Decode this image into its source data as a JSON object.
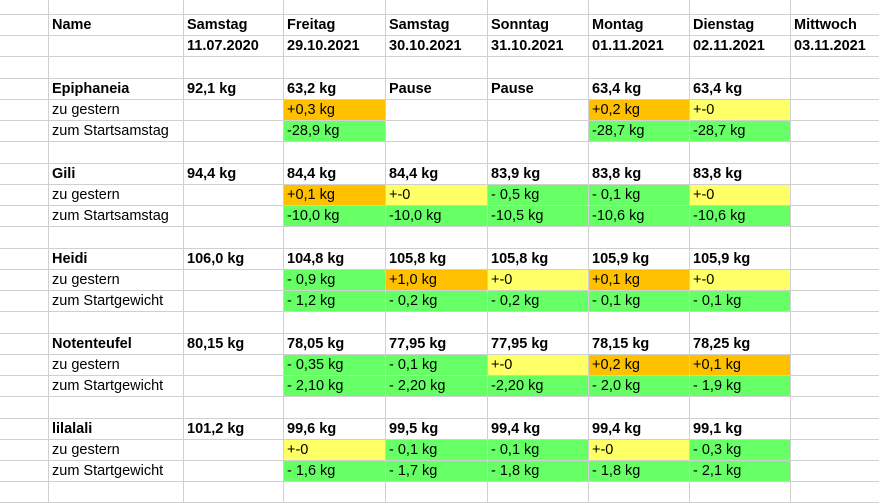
{
  "sheet": {
    "colors": {
      "orange": "#ffc000",
      "yellow": "#ffff66",
      "green": "#66ff66",
      "grid": "#d0d0d0"
    },
    "header": {
      "name": "Name",
      "days": [
        "Samstag",
        "Freitag",
        "Samstag",
        "Sonntag",
        "Montag",
        "Dienstag",
        "Mittwoch"
      ],
      "dates": [
        "11.07.2020",
        "29.10.2021",
        "30.10.2021",
        "31.10.2021",
        "01.11.2021",
        "02.11.2021",
        "03.11.2021"
      ]
    },
    "people": [
      {
        "name": "Epiphaneia",
        "start": "92,1 kg",
        "weights": [
          "63,2 kg",
          "Pause",
          "Pause",
          "63,4 kg",
          "63,4 kg",
          ""
        ],
        "diff_label": "zu gestern",
        "diff": [
          {
            "v": "+0,3 kg",
            "c": "orange"
          },
          {
            "v": "",
            "c": ""
          },
          {
            "v": "",
            "c": ""
          },
          {
            "v": "+0,2 kg",
            "c": "orange"
          },
          {
            "v": "+-0",
            "c": "yellow"
          },
          {
            "v": "",
            "c": ""
          }
        ],
        "total_label": "zum Startsamstag",
        "total": [
          {
            "v": "-28,9 kg",
            "c": "green"
          },
          {
            "v": "",
            "c": ""
          },
          {
            "v": "",
            "c": ""
          },
          {
            "v": "-28,7 kg",
            "c": "green"
          },
          {
            "v": "-28,7 kg",
            "c": "green"
          },
          {
            "v": "",
            "c": ""
          }
        ]
      },
      {
        "name": "Gili",
        "start": "94,4 kg",
        "weights": [
          "84,4 kg",
          "84,4 kg",
          "83,9 kg",
          "83,8 kg",
          "83,8 kg",
          ""
        ],
        "diff_label": "zu gestern",
        "diff": [
          {
            "v": "+0,1 kg",
            "c": "orange"
          },
          {
            "v": "+-0",
            "c": "yellow"
          },
          {
            "v": "- 0,5 kg",
            "c": "green"
          },
          {
            "v": "- 0,1 kg",
            "c": "green"
          },
          {
            "v": "+-0",
            "c": "yellow"
          },
          {
            "v": "",
            "c": ""
          }
        ],
        "total_label": "zum Startsamstag",
        "total": [
          {
            "v": "-10,0 kg",
            "c": "green"
          },
          {
            "v": "-10,0 kg",
            "c": "green"
          },
          {
            "v": "-10,5 kg",
            "c": "green"
          },
          {
            "v": "-10,6 kg",
            "c": "green"
          },
          {
            "v": "-10,6 kg",
            "c": "green"
          },
          {
            "v": "",
            "c": ""
          }
        ]
      },
      {
        "name": "Heidi",
        "start": "106,0 kg",
        "weights": [
          "104,8 kg",
          "105,8 kg",
          "105,8 kg",
          "105,9 kg",
          "105,9 kg",
          ""
        ],
        "diff_label": "zu gestern",
        "diff": [
          {
            "v": "- 0,9 kg",
            "c": "green"
          },
          {
            "v": "+1,0 kg",
            "c": "orange"
          },
          {
            "v": "+-0",
            "c": "yellow"
          },
          {
            "v": "+0,1 kg",
            "c": "orange"
          },
          {
            "v": "+-0",
            "c": "yellow"
          },
          {
            "v": "",
            "c": ""
          }
        ],
        "total_label": "zum Startgewicht",
        "total": [
          {
            "v": "- 1,2 kg",
            "c": "green"
          },
          {
            "v": "- 0,2 kg",
            "c": "green"
          },
          {
            "v": "- 0,2 kg",
            "c": "green"
          },
          {
            "v": "- 0,1 kg",
            "c": "green"
          },
          {
            "v": "- 0,1 kg",
            "c": "green"
          },
          {
            "v": "",
            "c": ""
          }
        ]
      },
      {
        "name": "Notenteufel",
        "start": "80,15 kg",
        "weights": [
          "78,05 kg",
          "77,95 kg",
          "77,95 kg",
          "78,15 kg",
          "78,25 kg",
          ""
        ],
        "diff_label": "zu gestern",
        "diff": [
          {
            "v": "- 0,35 kg",
            "c": "green"
          },
          {
            "v": "- 0,1 kg",
            "c": "green"
          },
          {
            "v": "+-0",
            "c": "yellow"
          },
          {
            "v": "+0,2 kg",
            "c": "orange"
          },
          {
            "v": "+0,1 kg",
            "c": "orange"
          },
          {
            "v": "",
            "c": ""
          }
        ],
        "total_label": "zum Startgewicht",
        "total": [
          {
            "v": "- 2,10 kg",
            "c": "green"
          },
          {
            "v": "- 2,20 kg",
            "c": "green"
          },
          {
            "v": "-2,20 kg",
            "c": "green"
          },
          {
            "v": "- 2,0 kg",
            "c": "green"
          },
          {
            "v": "- 1,9 kg",
            "c": "green"
          },
          {
            "v": "",
            "c": ""
          }
        ]
      },
      {
        "name": "lilalali",
        "start": "101,2 kg",
        "weights": [
          "99,6 kg",
          "99,5 kg",
          "99,4 kg",
          "99,4 kg",
          "99,1 kg",
          ""
        ],
        "diff_label": "zu gestern",
        "diff": [
          {
            "v": "+-0",
            "c": "yellow"
          },
          {
            "v": "- 0,1 kg",
            "c": "green"
          },
          {
            "v": "- 0,1 kg",
            "c": "green"
          },
          {
            "v": "+-0",
            "c": "yellow"
          },
          {
            "v": "- 0,3 kg",
            "c": "green"
          },
          {
            "v": "",
            "c": ""
          }
        ],
        "total_label": "zum Startgewicht",
        "total": [
          {
            "v": "- 1,6 kg",
            "c": "green"
          },
          {
            "v": "- 1,7 kg",
            "c": "green"
          },
          {
            "v": "- 1,8 kg",
            "c": "green"
          },
          {
            "v": "- 1,8 kg",
            "c": "green"
          },
          {
            "v": "- 2,1 kg",
            "c": "green"
          },
          {
            "v": "",
            "c": ""
          }
        ]
      }
    ]
  }
}
